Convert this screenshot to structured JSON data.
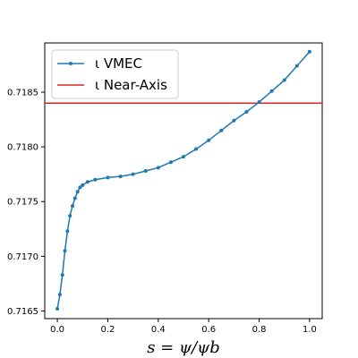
{
  "chart_data": {
    "type": "line",
    "xlabel": "s = ψ/ψb",
    "xlim": [
      -0.05,
      1.05
    ],
    "ylim": [
      0.71643,
      0.71895
    ],
    "x_ticks": [
      0.0,
      0.2,
      0.4,
      0.6,
      0.8,
      1.0
    ],
    "x_tick_labels": [
      "0.0",
      "0.2",
      "0.4",
      "0.6",
      "0.8",
      "1.0"
    ],
    "y_ticks": [
      0.7165,
      0.717,
      0.7175,
      0.718,
      0.7185
    ],
    "y_tick_labels": [
      "0.7165",
      "0.7170",
      "0.7175",
      "0.7180",
      "0.7185"
    ],
    "legend_position": "top-left",
    "series": [
      {
        "name": "ι VMEC",
        "color": "#1f77b4",
        "marker": "dot",
        "x": [
          0.0,
          0.01,
          0.02,
          0.03,
          0.04,
          0.05,
          0.06,
          0.07,
          0.08,
          0.09,
          0.1,
          0.12,
          0.15,
          0.2,
          0.25,
          0.3,
          0.35,
          0.4,
          0.45,
          0.5,
          0.55,
          0.6,
          0.65,
          0.7,
          0.75,
          0.8,
          0.85,
          0.9,
          0.95,
          1.0
        ],
        "y": [
          0.71652,
          0.71665,
          0.71683,
          0.71705,
          0.71723,
          0.71737,
          0.71746,
          0.71753,
          0.71759,
          0.71763,
          0.71765,
          0.71768,
          0.7177,
          0.71772,
          0.71773,
          0.71775,
          0.71778,
          0.71781,
          0.71786,
          0.71791,
          0.71798,
          0.71806,
          0.71815,
          0.71824,
          0.71832,
          0.71841,
          0.71851,
          0.71861,
          0.71874,
          0.71887
        ]
      },
      {
        "name": "ι Near-Axis",
        "color": "#d62728",
        "marker": "none",
        "type": "hline",
        "y": 0.7184
      }
    ]
  }
}
